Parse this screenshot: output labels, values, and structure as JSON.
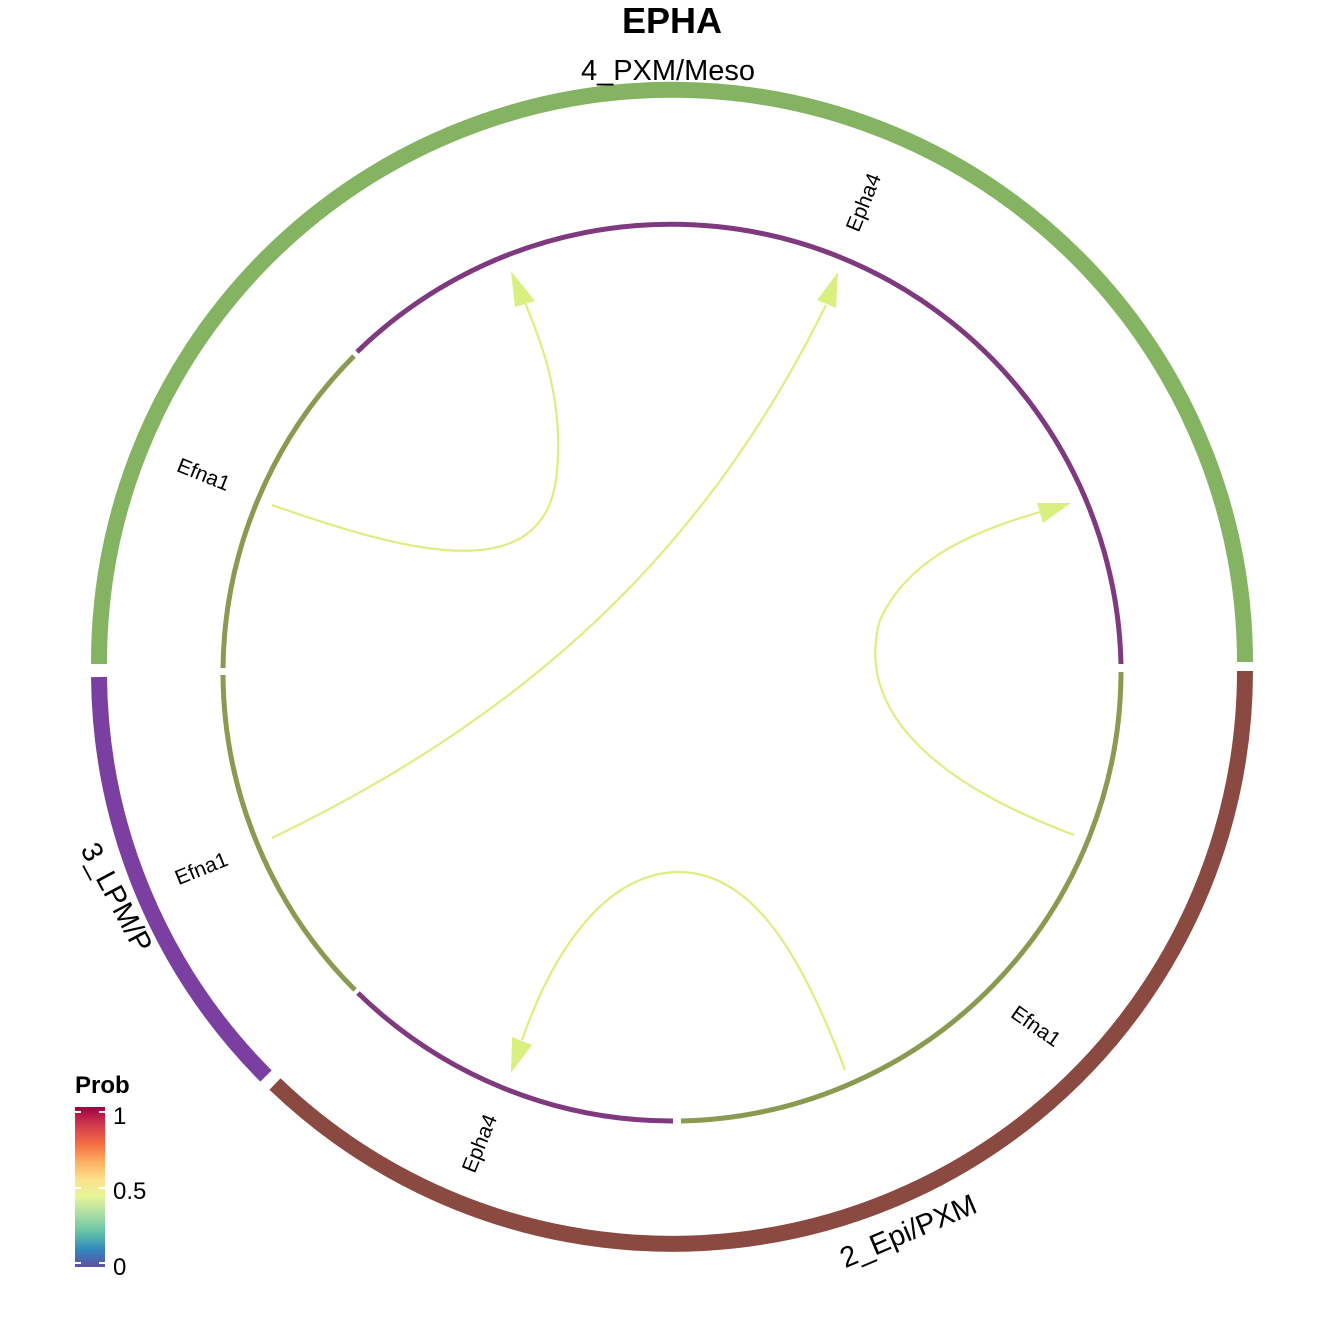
{
  "title": "EPHA",
  "groups": [
    {
      "label": "4_PXM/Meso",
      "color": "#84b361"
    },
    {
      "label": "3_LPM/P",
      "color": "#7a3fa0"
    },
    {
      "label": "2_Epi/PXM",
      "color": "#8a4a42"
    }
  ],
  "sectors": [
    {
      "label": "Epha4",
      "color": "#7f3a7f"
    },
    {
      "label": "Efna1",
      "color": "#8a9a50"
    },
    {
      "label": "Efna1",
      "color": "#8a9a50"
    },
    {
      "label": "Epha4",
      "color": "#7f3a7f"
    },
    {
      "label": "Efna1",
      "color": "#8a9a50"
    }
  ],
  "links": [
    {
      "from": "Efna1 (4_PXM/Meso)",
      "to": "Epha4 (4_PXM/Meso)",
      "prob": 0.55,
      "color": "#d9f081"
    },
    {
      "from": "Efna1 (3_LPM/P)",
      "to": "Epha4 (4_PXM/Meso)",
      "prob": 0.55,
      "color": "#d9f081"
    },
    {
      "from": "Efna1 (2_Epi/PXM)",
      "to": "Epha4 (4_PXM/Meso)",
      "prob": 0.55,
      "color": "#d9f081"
    },
    {
      "from": "Efna1 (2_Epi/PXM)",
      "to": "Epha4 (2_Epi/PXM)",
      "prob": 0.55,
      "color": "#d9f081"
    }
  ],
  "legend": {
    "title": "Prob",
    "ticks": [
      "1",
      "0.5",
      "0"
    ],
    "colors": [
      "#5e4fa2",
      "#3288bd",
      "#66c2a5",
      "#abdda4",
      "#e6f598",
      "#fee08b",
      "#fdae61",
      "#f46d43",
      "#d53e4f",
      "#9e0142"
    ]
  }
}
